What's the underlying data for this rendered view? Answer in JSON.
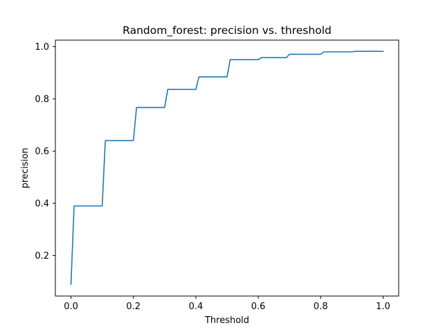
{
  "chart_data": {
    "type": "line",
    "title": "Random_forest: precision vs. threshold",
    "xlabel": "Threshold",
    "ylabel": "precision",
    "xlim": [
      -0.05,
      1.05
    ],
    "ylim": [
      0.045,
      1.025
    ],
    "grid": false,
    "x_ticks": [
      0.0,
      0.2,
      0.4,
      0.6,
      0.8,
      1.0
    ],
    "x_tick_labels": [
      "0.0",
      "0.2",
      "0.4",
      "0.6",
      "0.8",
      "1.0"
    ],
    "y_ticks": [
      0.2,
      0.4,
      0.6,
      0.8,
      1.0
    ],
    "y_tick_labels": [
      "0.2",
      "0.4",
      "0.6",
      "0.8",
      "1.0"
    ],
    "series": [
      {
        "color": "#1f77b4",
        "x": [
          0.0,
          0.01,
          0.1,
          0.11,
          0.2,
          0.21,
          0.3,
          0.31,
          0.4,
          0.41,
          0.5,
          0.51,
          0.6,
          0.61,
          0.69,
          0.7,
          0.8,
          0.81,
          0.9,
          0.91,
          1.0
        ],
        "y": [
          0.09,
          0.39,
          0.39,
          0.64,
          0.64,
          0.767,
          0.767,
          0.836,
          0.836,
          0.884,
          0.884,
          0.95,
          0.95,
          0.958,
          0.958,
          0.971,
          0.971,
          0.98,
          0.98,
          0.982,
          0.982
        ]
      }
    ]
  }
}
